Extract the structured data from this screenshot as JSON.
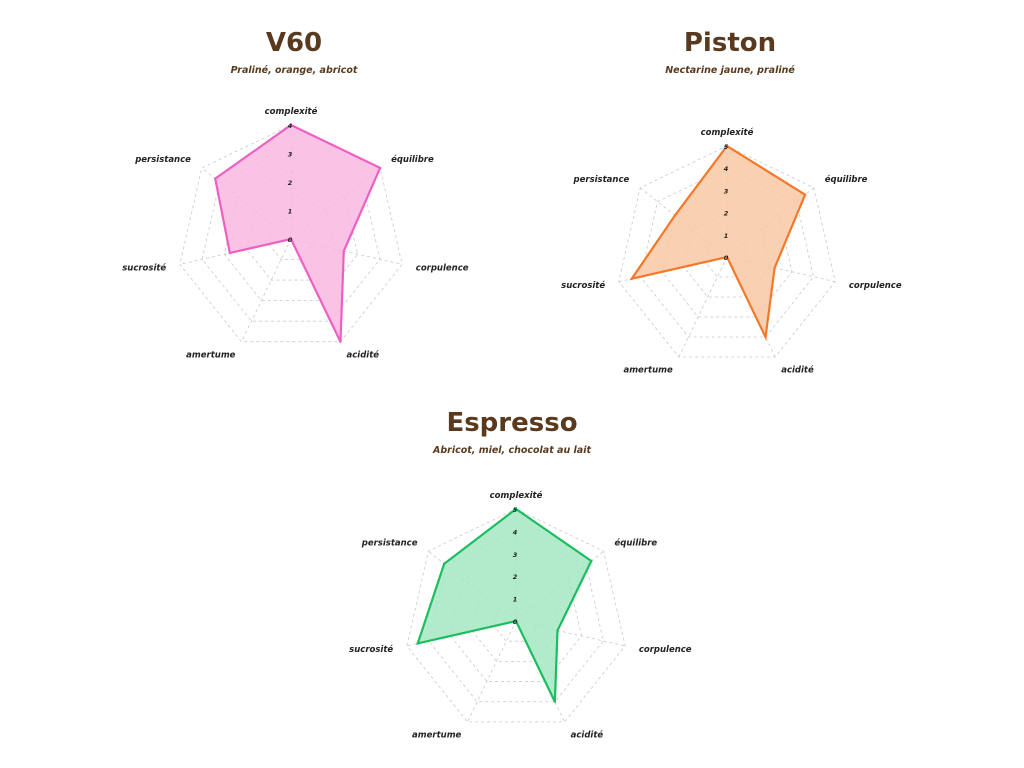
{
  "chart_data": [
    {
      "type": "radar",
      "title": "V60",
      "subtitle": "Praliné, orange, abricot",
      "axes": [
        "complexité",
        "équilibre",
        "corpulence",
        "acidité",
        "amertume",
        "sucrosité",
        "persistance"
      ],
      "rmax": 4,
      "ticks": [
        "0",
        "1",
        "2",
        "3",
        "4"
      ],
      "values": [
        4,
        4,
        1.9,
        4,
        0,
        2.2,
        3.4
      ],
      "color": "#ee5fc3",
      "fill": "#f9b9e2"
    },
    {
      "type": "radar",
      "title": "Piston",
      "subtitle": "Nectarine jaune, praliné",
      "axes": [
        "complexité",
        "équilibre",
        "corpulence",
        "acidité",
        "amertume",
        "sucrosité",
        "persistance"
      ],
      "rmax": 5,
      "ticks": [
        "0",
        "1",
        "2",
        "3",
        "4",
        "5"
      ],
      "values": [
        5,
        4.5,
        2.2,
        4,
        0,
        4.4,
        3
      ],
      "color": "#f4782a",
      "fill": "#f9c8a4"
    },
    {
      "type": "radar",
      "title": "Espresso",
      "subtitle": "Abricot, miel, chocolat au lait",
      "axes": [
        "complexité",
        "équilibre",
        "corpulence",
        "acidité",
        "amertume",
        "sucrosité",
        "persistance"
      ],
      "rmax": 5,
      "ticks": [
        "0",
        "1",
        "2",
        "3",
        "4",
        "5"
      ],
      "values": [
        5,
        4.3,
        1.9,
        4,
        0,
        4.5,
        4.1
      ],
      "color": "#1bbd5f",
      "fill": "#a5e7c2"
    }
  ]
}
